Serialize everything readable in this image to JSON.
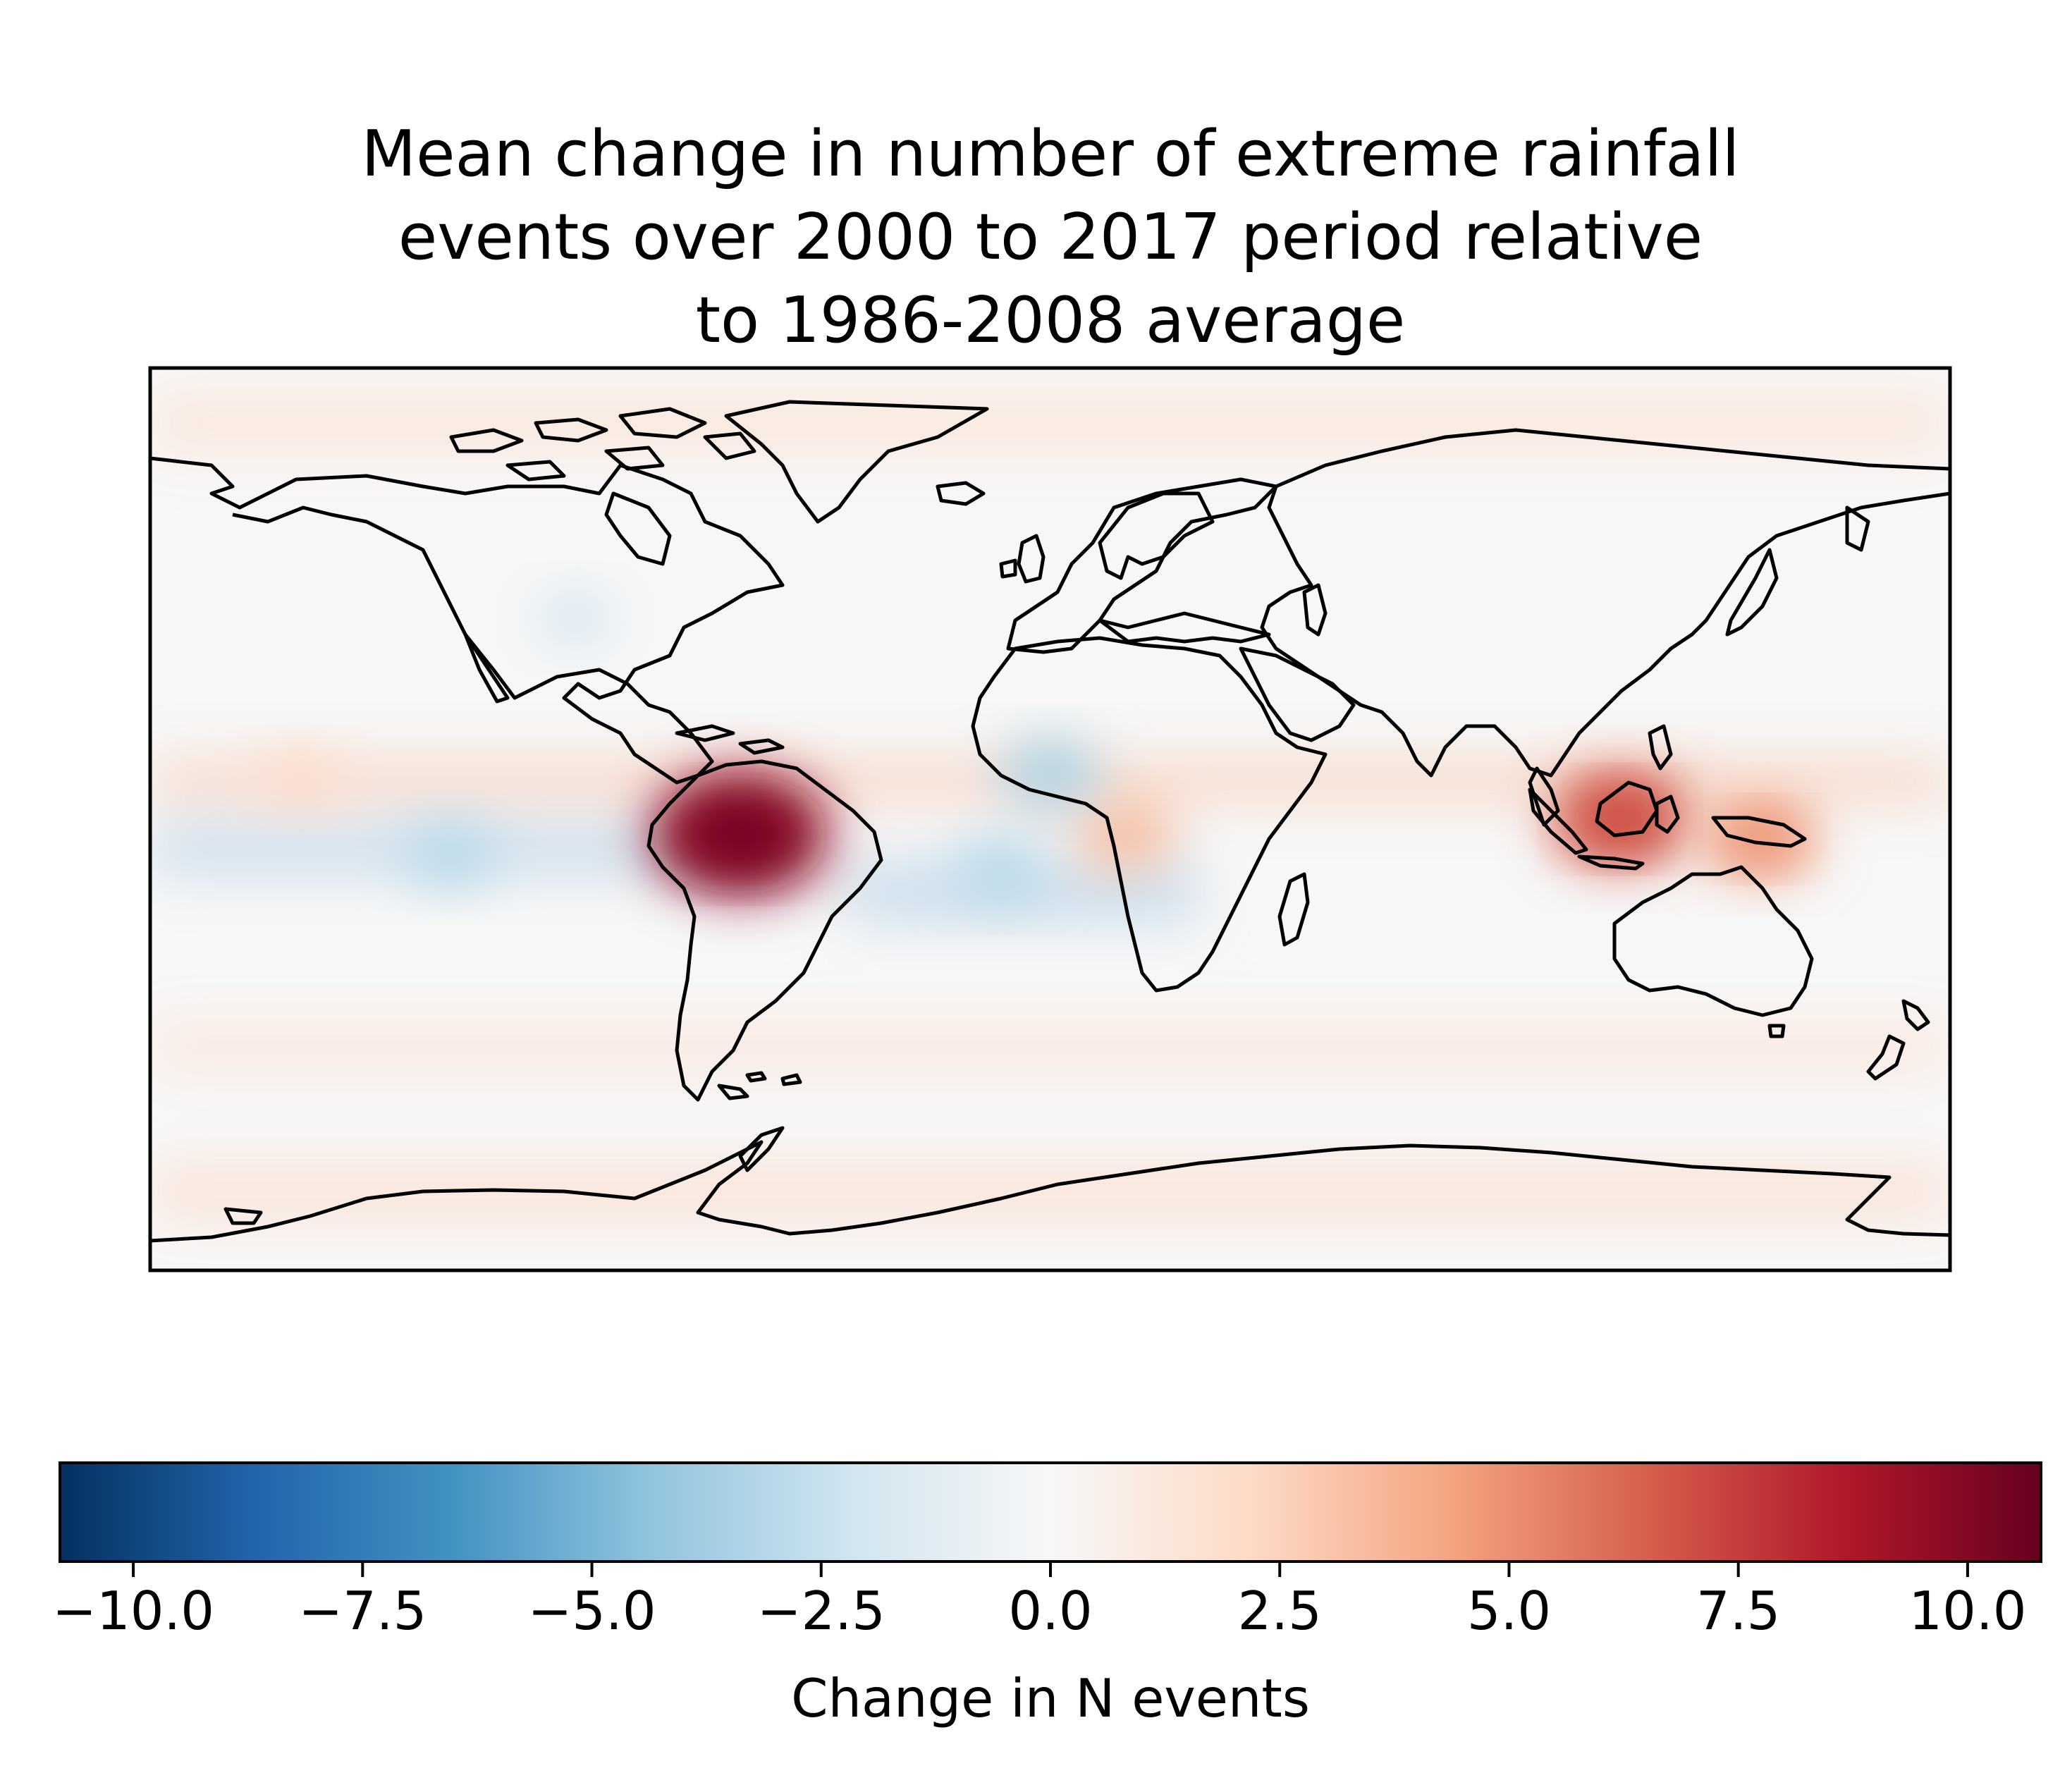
{
  "title": "Mean change in number of extreme rainfall\nevents over 2000 to 2017 period relative\nto 1986-2008 average",
  "colorbar": {
    "label": "Change in N events",
    "colormap": "RdBu_r",
    "range": [
      -10.8,
      10.8
    ],
    "ticks": [
      "−10.0",
      "−7.5",
      "−5.0",
      "−2.5",
      "0.0",
      "2.5",
      "5.0",
      "7.5",
      "10.0"
    ],
    "tick_values": [
      -10.0,
      -7.5,
      -5.0,
      -2.5,
      0.0,
      2.5,
      5.0,
      7.5,
      10.0
    ],
    "colors": [
      "#053061",
      "#2166ac",
      "#4393c3",
      "#92c5de",
      "#d1e5f0",
      "#f7f7f7",
      "#fddbc7",
      "#f4a582",
      "#d6604d",
      "#b2182b",
      "#67001f"
    ]
  },
  "map": {
    "projection": "PlateCarree",
    "extent_lon": [
      -180,
      180
    ],
    "extent_lat": [
      -90,
      90
    ],
    "background_color": "#f7f7f7",
    "coastline_color": "#000000",
    "anomalies": [
      {
        "region": "Amazon basin",
        "lon": -62,
        "lat": -3,
        "value": 9.5
      },
      {
        "region": "Borneo",
        "lon": 114,
        "lat": 0,
        "value": 6.5
      },
      {
        "region": "New Guinea",
        "lon": 142,
        "lat": -4,
        "value": 4.5
      },
      {
        "region": "Central Africa (Congo)",
        "lon": 15,
        "lat": -3,
        "value": 3.5
      },
      {
        "region": "Sahel / West Africa",
        "lon": 0,
        "lat": 9,
        "value": -3.5
      },
      {
        "region": "Equatorial East Pacific",
        "lon": -120,
        "lat": -7,
        "value": -3.0
      },
      {
        "region": "South Atlantic",
        "lon": -10,
        "lat": -10,
        "value": -3.0
      },
      {
        "region": "North America interior",
        "lon": -95,
        "lat": 40,
        "value": -2.0
      },
      {
        "region": "ITCZ Pacific band",
        "lon": -150,
        "lat": 8,
        "value": 2.0
      }
    ]
  }
}
